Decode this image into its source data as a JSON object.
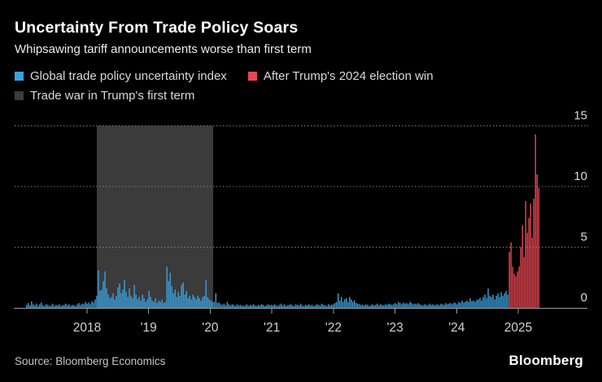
{
  "header": {
    "title": "Uncertainty From Trade Policy Soars",
    "subtitle": "Whipsawing tariff announcements worse than first term"
  },
  "legend": [
    {
      "label": "Global trade policy uncertainty index",
      "color": "#3ba1de"
    },
    {
      "label": "After Trump's 2024 election win",
      "color": "#ea4653"
    },
    {
      "label": "Trade war in Trump's first term",
      "color": "#3b3b3b"
    }
  ],
  "footer": {
    "source": "Source: Bloomberg Economics",
    "logo": "Bloomberg"
  },
  "chart_data": {
    "type": "bar",
    "title": "Uncertainty From Trade Policy Soars",
    "subtitle": "Whipsawing tariff announcements worse than first term",
    "xlabel": "",
    "ylabel": "",
    "grid": "dotted-horizontal",
    "legend_position": "top",
    "x_range_years": [
      2017.0,
      2025.4
    ],
    "ylim": [
      0,
      15
    ],
    "y_ticks": [
      0,
      5,
      10,
      15
    ],
    "x_ticks": [
      {
        "year": 2018,
        "label": "2018"
      },
      {
        "year": 2019,
        "label": "'19"
      },
      {
        "year": 2020,
        "label": "'20"
      },
      {
        "year": 2021,
        "label": "'21"
      },
      {
        "year": 2022,
        "label": "'22"
      },
      {
        "year": 2023,
        "label": "'23"
      },
      {
        "year": 2024,
        "label": "'24"
      },
      {
        "year": 2025,
        "label": "2025"
      }
    ],
    "band": {
      "label": "Trade war in Trump's first term",
      "x_from_year": 2018.16,
      "x_to_year": 2020.05,
      "color": "#3b3b3b"
    },
    "series": [
      {
        "name": "Global trade policy uncertainty index",
        "color": "#3ba1de"
      },
      {
        "name": "After Trump's 2024 election win",
        "color": "#ea4653"
      }
    ],
    "bar_x_start_year": 2017.02,
    "bar_x_step_years": 0.026476,
    "red_from_index": 296,
    "values": [
      0.25,
      0.4,
      0.2,
      0.55,
      0.3,
      0.2,
      0.35,
      0.15,
      0.3,
      0.45,
      0.2,
      0.15,
      0.3,
      0.25,
      0.15,
      0.2,
      0.35,
      0.15,
      0.25,
      0.2,
      0.3,
      0.15,
      0.2,
      0.25,
      0.35,
      0.2,
      0.3,
      0.15,
      0.25,
      0.2,
      0.15,
      0.3,
      0.4,
      0.25,
      0.35,
      0.3,
      0.5,
      0.35,
      0.45,
      0.3,
      0.55,
      0.45,
      0.7,
      1.0,
      3.1,
      1.4,
      1.5,
      2.2,
      3.0,
      1.6,
      1.1,
      0.8,
      0.9,
      1.2,
      0.7,
      1.0,
      1.7,
      2.0,
      1.2,
      1.5,
      2.3,
      1.3,
      0.9,
      1.6,
      1.0,
      0.8,
      1.9,
      1.1,
      0.7,
      0.9,
      0.6,
      1.1,
      0.8,
      0.5,
      0.7,
      1.4,
      0.9,
      0.6,
      0.5,
      0.8,
      0.4,
      0.6,
      0.5,
      0.7,
      0.4,
      0.5,
      3.4,
      2.2,
      2.9,
      1.8,
      1.2,
      1.5,
      0.9,
      1.3,
      1.0,
      1.9,
      2.1,
      1.1,
      1.4,
      0.8,
      1.0,
      0.7,
      1.1,
      0.9,
      0.7,
      1.0,
      0.8,
      0.6,
      0.9,
      1.0,
      2.3,
      0.9,
      0.7,
      0.6,
      0.5,
      0.5,
      1.2,
      0.4,
      0.45,
      0.3,
      0.25,
      0.35,
      0.2,
      0.5,
      0.3,
      0.2,
      0.3,
      0.25,
      0.15,
      0.3,
      0.2,
      0.25,
      0.2,
      0.15,
      0.2,
      0.3,
      0.15,
      0.25,
      0.2,
      0.3,
      0.2,
      0.15,
      0.25,
      0.2,
      0.3,
      0.25,
      0.15,
      0.2,
      0.3,
      0.2,
      0.25,
      0.2,
      0.3,
      0.2,
      0.15,
      0.25,
      0.35,
      0.2,
      0.3,
      0.15,
      0.2,
      0.25,
      0.3,
      0.2,
      0.15,
      0.3,
      0.25,
      0.2,
      0.35,
      0.2,
      0.15,
      0.25,
      0.2,
      0.3,
      0.2,
      0.25,
      0.15,
      0.2,
      0.3,
      0.25,
      0.2,
      0.35,
      0.25,
      0.2,
      0.15,
      0.3,
      0.2,
      0.25,
      0.3,
      0.4,
      0.5,
      1.2,
      0.6,
      0.9,
      0.5,
      0.7,
      0.8,
      0.5,
      0.9,
      0.7,
      0.5,
      0.6,
      0.4,
      0.35,
      0.3,
      0.25,
      0.25,
      0.2,
      0.3,
      0.25,
      0.15,
      0.2,
      0.3,
      0.2,
      0.25,
      0.35,
      0.2,
      0.3,
      0.25,
      0.2,
      0.3,
      0.25,
      0.35,
      0.3,
      0.25,
      0.3,
      0.4,
      0.3,
      0.5,
      0.4,
      0.3,
      0.45,
      0.35,
      0.4,
      0.3,
      0.5,
      0.4,
      0.3,
      0.35,
      0.3,
      0.4,
      0.3,
      0.25,
      0.2,
      0.3,
      0.25,
      0.2,
      0.35,
      0.25,
      0.3,
      0.2,
      0.25,
      0.3,
      0.2,
      0.35,
      0.3,
      0.25,
      0.4,
      0.3,
      0.35,
      0.4,
      0.3,
      0.45,
      0.4,
      0.3,
      0.5,
      0.4,
      0.6,
      0.45,
      0.5,
      0.6,
      0.5,
      0.8,
      0.55,
      0.6,
      0.5,
      0.65,
      0.7,
      0.8,
      0.6,
      0.9,
      1.1,
      0.8,
      1.6,
      1.0,
      0.9,
      1.1,
      0.7,
      1.0,
      1.2,
      0.9,
      1.3,
      1.0,
      1.2,
      1.4,
      1.1,
      4.6,
      5.4,
      3.4,
      2.8,
      2.6,
      3.0,
      3.4,
      5.0,
      6.8,
      4.2,
      8.8,
      6.2,
      7.4,
      8.6,
      5.8,
      9.0,
      14.3,
      11.0,
      9.9
    ]
  }
}
